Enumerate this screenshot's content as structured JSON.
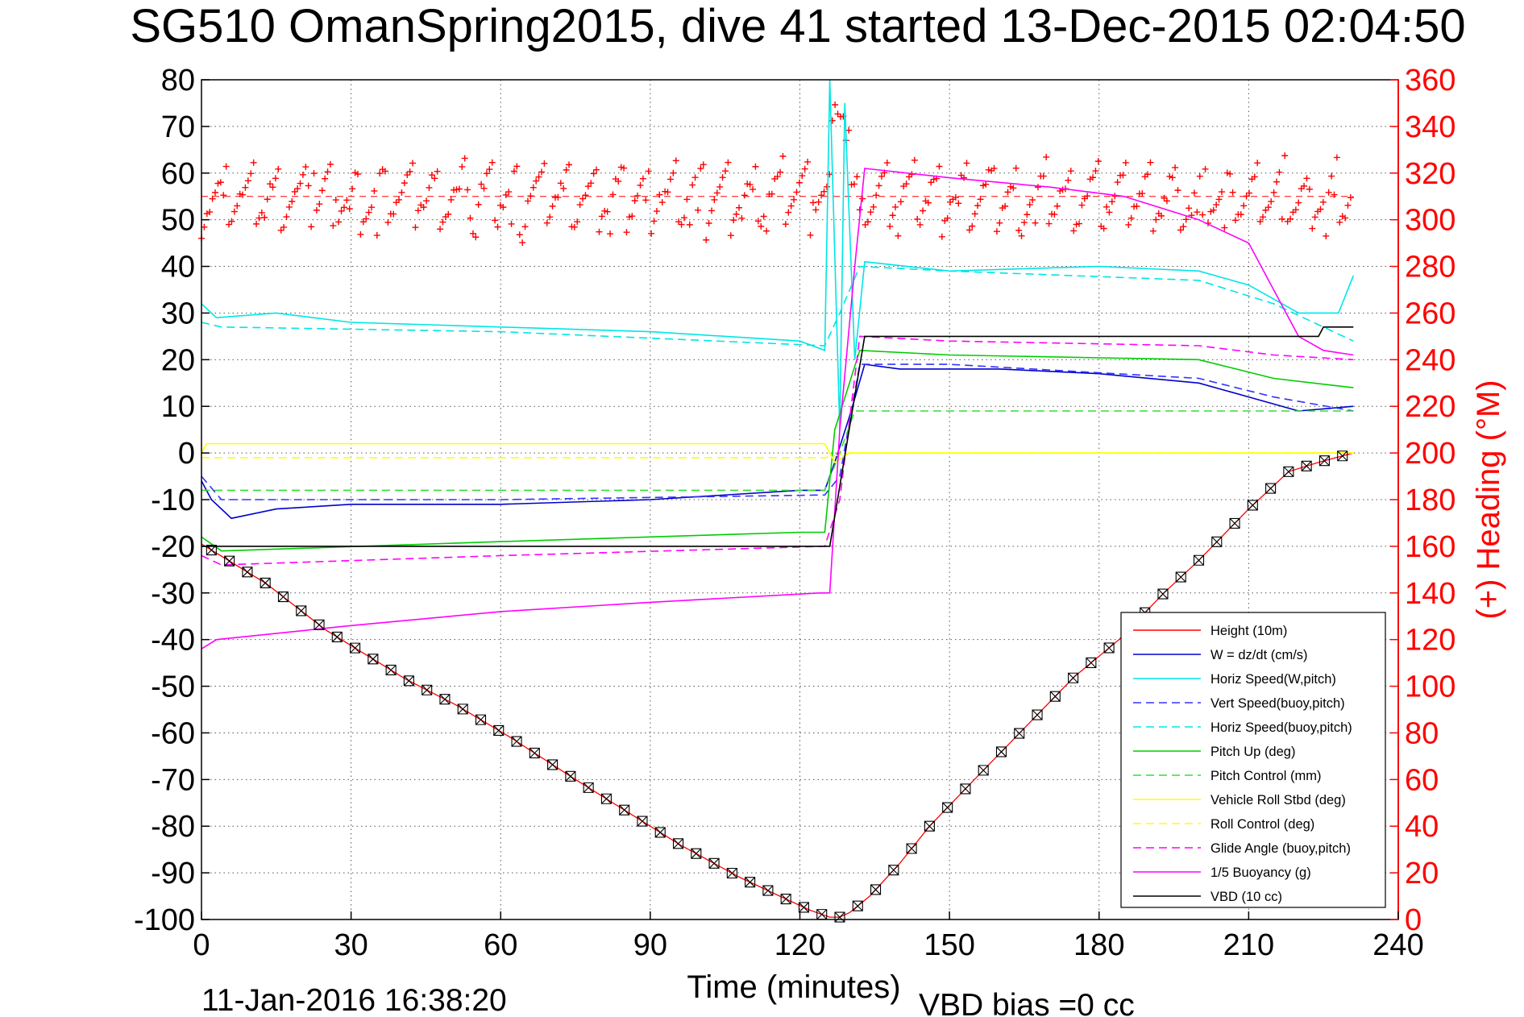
{
  "chart_data": {
    "type": "line",
    "title": "SG510 OmanSpring2015, dive 41 started 13-Dec-2015 02:04:50",
    "xlabel": "Time (minutes)",
    "ylabel_right": "(+) Heading (°M)",
    "xlim": [
      0,
      240
    ],
    "ylim": [
      -100,
      80
    ],
    "ylim_right": [
      0,
      360
    ],
    "xticks": [
      "0",
      "30",
      "60",
      "90",
      "120",
      "150",
      "180",
      "210",
      "240"
    ],
    "yticks": [
      "80",
      "70",
      "60",
      "50",
      "40",
      "30",
      "20",
      "10",
      "0",
      "-10",
      "-20",
      "-30",
      "-40",
      "-50",
      "-60",
      "-70",
      "-80",
      "-90",
      "-100"
    ],
    "yticks_right": [
      "360",
      "340",
      "320",
      "300",
      "280",
      "260",
      "240",
      "220",
      "200",
      "180",
      "160",
      "140",
      "120",
      "100",
      "80",
      "60",
      "40",
      "20",
      "0"
    ],
    "grid": true,
    "legend_position": "bottom-right",
    "footer_left": "11-Jan-2016 16:38:20",
    "footer_right": "VBD bias =0 cc",
    "heading_mean": 310,
    "series": [
      {
        "name": "Height (10m)",
        "color": "#ff0000",
        "style": "solid",
        "x": [
          0,
          13,
          25,
          41,
          51,
          62,
          75,
          84,
          96,
          108,
          116,
          122,
          126,
          128,
          130,
          134,
          140,
          146,
          155,
          165,
          175,
          184,
          193,
          200,
          210,
          218,
          224,
          231
        ],
        "y": [
          -19.5,
          -28,
          -38,
          -48.5,
          -54,
          -61,
          -70,
          -76,
          -84,
          -91,
          -95,
          -98,
          -99.5,
          -99.5,
          -98.5,
          -95,
          -88,
          -80,
          -70,
          -59,
          -48,
          -40,
          -30,
          -23,
          -12,
          -4,
          -2,
          0
        ]
      },
      {
        "name": "W = dz/dt (cm/s)",
        "color": "#0000cc",
        "style": "solid",
        "x": [
          0,
          2,
          6,
          15,
          30,
          60,
          90,
          120,
          125,
          127,
          130,
          133,
          140,
          160,
          180,
          200,
          210,
          220,
          231
        ],
        "y": [
          -6,
          -10,
          -14,
          -12,
          -11,
          -11,
          -10,
          -8,
          -8,
          -2,
          8,
          19,
          18,
          18,
          17,
          15,
          12,
          9,
          10
        ]
      },
      {
        "name": "Horiz Speed(W,pitch)",
        "color": "#00e5e5",
        "style": "solid",
        "x": [
          0,
          3,
          15,
          30,
          60,
          90,
          120,
          125,
          126,
          128,
          129,
          131,
          133,
          150,
          180,
          200,
          210,
          220,
          228,
          231
        ],
        "y": [
          32,
          29,
          30,
          28,
          27,
          26,
          24,
          22,
          80,
          5,
          75,
          20,
          41,
          39,
          40,
          39,
          36,
          30,
          30,
          38
        ]
      },
      {
        "name": "Vert Speed(buoy,pitch)",
        "color": "#3333ff",
        "style": "dashed",
        "x": [
          0,
          4,
          60,
          125,
          128,
          132,
          150,
          200,
          215,
          231
        ],
        "y": [
          -5,
          -10,
          -10,
          -9,
          -5,
          19,
          19,
          16,
          12,
          9
        ]
      },
      {
        "name": "Horiz Speed(buoy,pitch)",
        "color": "#00e5e5",
        "style": "dashed",
        "x": [
          0,
          4,
          60,
          125,
          128,
          132,
          150,
          200,
          215,
          231
        ],
        "y": [
          28,
          27,
          26,
          23,
          30,
          40,
          39,
          37,
          32,
          24
        ]
      },
      {
        "name": "Pitch Up (deg)",
        "color": "#00cc00",
        "style": "solid",
        "x": [
          0,
          4,
          60,
          120,
          125,
          127,
          132,
          150,
          200,
          215,
          231
        ],
        "y": [
          -18,
          -21,
          -19,
          -17,
          -17,
          5,
          22,
          21,
          20,
          16,
          14
        ]
      },
      {
        "name": "Pitch Control (mm)",
        "color": "#33dd33",
        "style": "dashed",
        "x": [
          0,
          2,
          125,
          128,
          131,
          231
        ],
        "y": [
          -8,
          -8,
          -8,
          0,
          9,
          9
        ]
      },
      {
        "name": "Vehicle Roll Stbd (deg)",
        "color": "#ffff00",
        "style": "solid",
        "x": [
          0,
          1,
          125,
          127,
          130,
          231
        ],
        "y": [
          0,
          2,
          2,
          -2,
          0,
          0
        ]
      },
      {
        "name": "Roll Control (deg)",
        "color": "#ffff00",
        "style": "dashed",
        "x": [
          0,
          125,
          130,
          231
        ],
        "y": [
          -1,
          -1,
          0,
          0
        ]
      },
      {
        "name": "Glide Angle (buoy,pitch)",
        "color": "#ff00ff",
        "style": "dashed",
        "x": [
          0,
          4,
          60,
          125,
          128,
          132,
          150,
          200,
          215,
          231
        ],
        "y": [
          -22,
          -24,
          -22,
          -20,
          -10,
          25,
          24,
          23,
          21,
          20
        ]
      },
      {
        "name": "1/5 Buoyancy (g)",
        "color": "#ff00ff",
        "style": "solid",
        "x": [
          0,
          3,
          30,
          60,
          90,
          124,
          126,
          128,
          131,
          133,
          150,
          170,
          185,
          200,
          210,
          215,
          220,
          225,
          231
        ],
        "y": [
          -42,
          -40,
          -37,
          -34,
          -32,
          -30,
          -30,
          5,
          40,
          61,
          59,
          57,
          55,
          50,
          45,
          35,
          25,
          22,
          21
        ]
      },
      {
        "name": "VBD (10 cc)",
        "color": "#000000",
        "style": "solid",
        "x": [
          0,
          2,
          125,
          126,
          133,
          224,
          225,
          231
        ],
        "y": [
          -20,
          -20,
          -20,
          -20,
          25,
          25,
          27,
          27
        ]
      }
    ]
  }
}
